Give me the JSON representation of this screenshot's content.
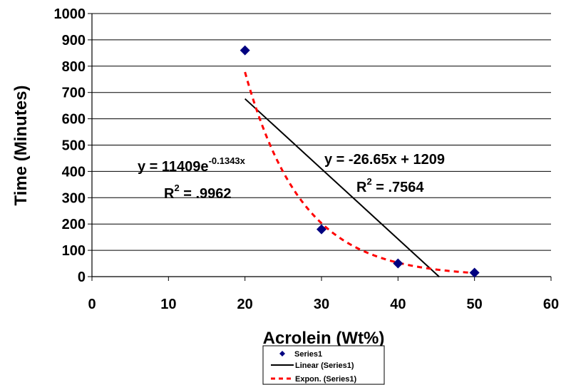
{
  "chart_data": {
    "type": "scatter",
    "xlabel": "Acrolein (Wt%)",
    "ylabel": "Time (Minutes)",
    "xlim": [
      0,
      60
    ],
    "ylim": [
      0,
      1000
    ],
    "x_ticks": [
      "0",
      "10",
      "20",
      "30",
      "40",
      "50",
      "60"
    ],
    "y_ticks": [
      "0",
      "100",
      "200",
      "300",
      "400",
      "500",
      "600",
      "700",
      "800",
      "900",
      "1000"
    ],
    "grid": "horizontal",
    "series": [
      {
        "name": "Series1",
        "x": [
          20,
          30,
          40,
          50
        ],
        "y": [
          860,
          180,
          50,
          15
        ],
        "color": "#000080",
        "marker": "diamond"
      }
    ],
    "trendlines": [
      {
        "name": "Linear (Series1)",
        "kind": "linear",
        "slope": -26.65,
        "intercept": 1209,
        "x_range": [
          20,
          45.4
        ],
        "color": "#000000",
        "equation": {
          "main": "y = -26.65x + 1209",
          "r2_prefix": "R",
          "r2_sup": "2",
          "r2_value": " = .7564"
        }
      },
      {
        "name": "Expon. (Series1)",
        "kind": "exponential",
        "coefficient": 11409,
        "rate": -0.1343,
        "x_range": [
          20,
          50
        ],
        "color": "#ff0000",
        "equation": {
          "main": "y = 11409e",
          "main_sup": "-0.1343x",
          "r2_prefix": "R",
          "r2_sup": "2",
          "r2_value": " = .9962"
        }
      }
    ],
    "legend": {
      "placement": "bottom-center",
      "entries": [
        "Series1",
        "Linear (Series1)",
        "Expon. (Series1)"
      ]
    }
  }
}
